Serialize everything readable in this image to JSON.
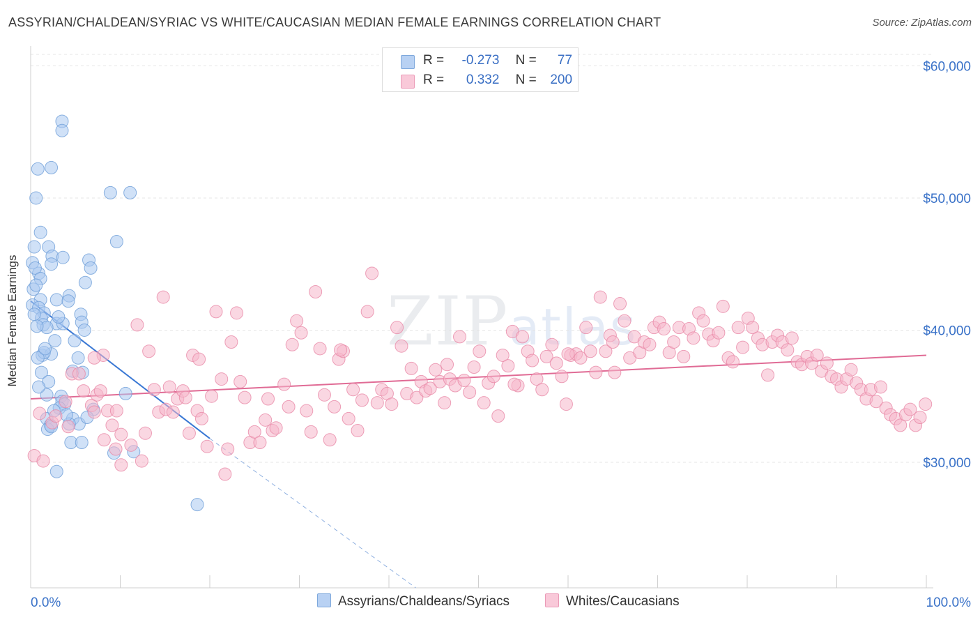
{
  "title": "ASSYRIAN/CHALDEAN/SYRIAC VS WHITE/CAUCASIAN MEDIAN FEMALE EARNINGS CORRELATION CHART",
  "source": "Source: ZipAtlas.com",
  "watermark": {
    "zip": "ZIP",
    "atlas": "atlas"
  },
  "legend": {
    "r_label": "R =",
    "n_label": "N =",
    "rows": [
      {
        "r": "-0.273",
        "n": "77",
        "color": "#a9c8f0"
      },
      {
        "r": "0.332",
        "n": "200",
        "color": "#f6b6cb"
      }
    ]
  },
  "chart_data": {
    "type": "scatter",
    "title": "ASSYRIAN/CHALDEAN/SYRIAC VS WHITE/CAUCASIAN MEDIAN FEMALE EARNINGS CORRELATION CHART",
    "xlabel": "",
    "ylabel": "Median Female Earnings",
    "xlim": [
      0,
      100
    ],
    "ylim": [
      20500,
      61500
    ],
    "x_tick_labels": [
      "0.0%",
      "100.0%"
    ],
    "y_ticks": [
      30000,
      40000,
      50000,
      60000
    ],
    "y_tick_labels": [
      "$30,000",
      "$40,000",
      "$50,000",
      "$60,000"
    ],
    "grid": true,
    "legend_position": "top-center",
    "series": [
      {
        "name": "Assyrians/Chaldeans/Syriacs",
        "color": "#a9c8f0",
        "stroke": "#6f9fd8",
        "trend": {
          "x0": 0,
          "y0": 42200,
          "x1": 20,
          "y1": 31800,
          "dash_to_x": 43,
          "dash_to_y": 20500,
          "color": "#3a78d4"
        },
        "points": [
          [
            3.5,
            55800
          ],
          [
            3.5,
            55100
          ],
          [
            0.8,
            52200
          ],
          [
            2.3,
            52300
          ],
          [
            0.6,
            50000
          ],
          [
            8.9,
            50400
          ],
          [
            11.1,
            50400
          ],
          [
            1.1,
            47400
          ],
          [
            9.6,
            46700
          ],
          [
            0.4,
            46300
          ],
          [
            2.0,
            46300
          ],
          [
            2.4,
            45600
          ],
          [
            3.6,
            45500
          ],
          [
            2.3,
            45000
          ],
          [
            6.5,
            45300
          ],
          [
            0.2,
            45100
          ],
          [
            6.7,
            44700
          ],
          [
            0.9,
            44300
          ],
          [
            0.5,
            44700
          ],
          [
            6.1,
            43600
          ],
          [
            0.3,
            43100
          ],
          [
            1.1,
            42300
          ],
          [
            4.3,
            42600
          ],
          [
            2.9,
            42300
          ],
          [
            4.2,
            42200
          ],
          [
            0.2,
            41900
          ],
          [
            0.9,
            41700
          ],
          [
            1.5,
            41300
          ],
          [
            1.2,
            40900
          ],
          [
            5.6,
            41200
          ],
          [
            5.7,
            40600
          ],
          [
            2.9,
            40500
          ],
          [
            1.4,
            40400
          ],
          [
            1.8,
            40200
          ],
          [
            6.0,
            40000
          ],
          [
            0.7,
            40300
          ],
          [
            3.6,
            40500
          ],
          [
            4.9,
            39200
          ],
          [
            1.3,
            38100
          ],
          [
            2.3,
            38200
          ],
          [
            1.5,
            38300
          ],
          [
            0.8,
            37900
          ],
          [
            5.3,
            37900
          ],
          [
            4.7,
            36900
          ],
          [
            5.8,
            36800
          ],
          [
            1.2,
            36800
          ],
          [
            1.8,
            35100
          ],
          [
            3.4,
            35000
          ],
          [
            3.5,
            34600
          ],
          [
            3.8,
            34400
          ],
          [
            10.6,
            35200
          ],
          [
            7.0,
            34000
          ],
          [
            1.8,
            33300
          ],
          [
            4.7,
            33300
          ],
          [
            5.4,
            32900
          ],
          [
            2.2,
            32800
          ],
          [
            1.9,
            32500
          ],
          [
            4.3,
            32900
          ],
          [
            2.3,
            32700
          ],
          [
            4.5,
            31500
          ],
          [
            5.7,
            31500
          ],
          [
            9.3,
            30700
          ],
          [
            11.5,
            30800
          ],
          [
            2.9,
            29300
          ],
          [
            18.6,
            26800
          ],
          [
            1.1,
            43900
          ],
          [
            0.6,
            43400
          ],
          [
            2.7,
            39200
          ],
          [
            0.4,
            41200
          ],
          [
            3.1,
            41000
          ],
          [
            1.6,
            38600
          ],
          [
            2.0,
            36100
          ],
          [
            0.9,
            35700
          ],
          [
            3.2,
            34100
          ],
          [
            4.0,
            33600
          ],
          [
            2.6,
            33900
          ],
          [
            6.3,
            33400
          ]
        ]
      },
      {
        "name": "Whites/Caucasians",
        "color": "#f6b6cb",
        "stroke": "#e88aa8",
        "trend": {
          "x0": 0,
          "y0": 34800,
          "x1": 100,
          "y1": 38100,
          "color": "#e06b95"
        },
        "points": [
          [
            0.4,
            30500
          ],
          [
            1.4,
            30100
          ],
          [
            1.0,
            33700
          ],
          [
            2.4,
            33000
          ],
          [
            2.8,
            33500
          ],
          [
            4.2,
            32700
          ],
          [
            3.9,
            34600
          ],
          [
            4.6,
            36700
          ],
          [
            5.4,
            36700
          ],
          [
            5.9,
            35400
          ],
          [
            6.8,
            34300
          ],
          [
            7.4,
            35100
          ],
          [
            7.8,
            35400
          ],
          [
            7.1,
            33800
          ],
          [
            8.1,
            38100
          ],
          [
            8.6,
            33900
          ],
          [
            9.1,
            32800
          ],
          [
            9.6,
            33900
          ],
          [
            10.1,
            29800
          ],
          [
            10.1,
            32100
          ],
          [
            11.2,
            31300
          ],
          [
            11.9,
            40400
          ],
          [
            12.4,
            30100
          ],
          [
            12.8,
            32200
          ],
          [
            13.2,
            38400
          ],
          [
            13.8,
            35500
          ],
          [
            14.3,
            33800
          ],
          [
            14.8,
            42500
          ],
          [
            15.1,
            34000
          ],
          [
            15.9,
            33800
          ],
          [
            16.4,
            34800
          ],
          [
            17.0,
            35400
          ],
          [
            17.3,
            34900
          ],
          [
            17.7,
            32200
          ],
          [
            18.1,
            38100
          ],
          [
            18.6,
            33900
          ],
          [
            19.1,
            33300
          ],
          [
            19.7,
            31200
          ],
          [
            20.2,
            35000
          ],
          [
            20.7,
            41400
          ],
          [
            21.3,
            36300
          ],
          [
            21.7,
            29100
          ],
          [
            22.4,
            39100
          ],
          [
            23.0,
            41300
          ],
          [
            23.4,
            36100
          ],
          [
            23.9,
            34900
          ],
          [
            24.5,
            31500
          ],
          [
            25.0,
            32300
          ],
          [
            25.6,
            31500
          ],
          [
            26.2,
            33200
          ],
          [
            27.0,
            32400
          ],
          [
            27.4,
            32600
          ],
          [
            28.3,
            35900
          ],
          [
            28.8,
            34200
          ],
          [
            29.2,
            38900
          ],
          [
            29.7,
            40700
          ],
          [
            30.2,
            39800
          ],
          [
            30.8,
            33900
          ],
          [
            31.3,
            32300
          ],
          [
            31.8,
            42900
          ],
          [
            32.3,
            38600
          ],
          [
            32.8,
            35100
          ],
          [
            33.4,
            31700
          ],
          [
            33.9,
            34200
          ],
          [
            34.4,
            37800
          ],
          [
            34.9,
            38400
          ],
          [
            35.5,
            33300
          ],
          [
            36.0,
            35500
          ],
          [
            36.5,
            32400
          ],
          [
            37.0,
            34700
          ],
          [
            37.6,
            41400
          ],
          [
            38.1,
            44300
          ],
          [
            38.7,
            34500
          ],
          [
            39.2,
            35500
          ],
          [
            39.8,
            35200
          ],
          [
            40.3,
            34400
          ],
          [
            40.9,
            40200
          ],
          [
            41.4,
            38800
          ],
          [
            42.0,
            35200
          ],
          [
            42.5,
            37100
          ],
          [
            43.1,
            34900
          ],
          [
            43.6,
            36100
          ],
          [
            44.1,
            35400
          ],
          [
            44.6,
            35600
          ],
          [
            45.2,
            37000
          ],
          [
            45.7,
            36100
          ],
          [
            46.2,
            34500
          ],
          [
            46.8,
            36300
          ],
          [
            47.4,
            35800
          ],
          [
            47.9,
            39500
          ],
          [
            48.4,
            36200
          ],
          [
            49.0,
            35300
          ],
          [
            49.5,
            37200
          ],
          [
            50.1,
            38400
          ],
          [
            50.6,
            34500
          ],
          [
            51.1,
            36000
          ],
          [
            51.7,
            36500
          ],
          [
            52.2,
            33500
          ],
          [
            52.7,
            38100
          ],
          [
            53.3,
            37300
          ],
          [
            53.8,
            39900
          ],
          [
            54.4,
            35800
          ],
          [
            54.9,
            39500
          ],
          [
            55.5,
            38400
          ],
          [
            56.0,
            37700
          ],
          [
            56.5,
            36300
          ],
          [
            57.1,
            35500
          ],
          [
            57.6,
            38000
          ],
          [
            58.2,
            38900
          ],
          [
            58.7,
            37500
          ],
          [
            59.3,
            36500
          ],
          [
            59.8,
            34400
          ],
          [
            60.3,
            38100
          ],
          [
            60.9,
            38200
          ],
          [
            61.4,
            37900
          ],
          [
            62.0,
            40200
          ],
          [
            62.5,
            38400
          ],
          [
            63.1,
            36800
          ],
          [
            63.6,
            42500
          ],
          [
            64.2,
            38400
          ],
          [
            64.7,
            39600
          ],
          [
            65.2,
            36800
          ],
          [
            65.8,
            42000
          ],
          [
            66.3,
            40700
          ],
          [
            66.9,
            37900
          ],
          [
            67.4,
            39500
          ],
          [
            68.0,
            38300
          ],
          [
            68.5,
            39100
          ],
          [
            69.1,
            38900
          ],
          [
            69.6,
            40200
          ],
          [
            70.2,
            40600
          ],
          [
            70.7,
            40100
          ],
          [
            71.3,
            38300
          ],
          [
            71.8,
            39100
          ],
          [
            72.4,
            40200
          ],
          [
            72.9,
            38000
          ],
          [
            73.5,
            40100
          ],
          [
            74.0,
            39400
          ],
          [
            74.6,
            41300
          ],
          [
            75.1,
            40700
          ],
          [
            75.7,
            39700
          ],
          [
            76.2,
            39200
          ],
          [
            76.8,
            39800
          ],
          [
            77.3,
            41800
          ],
          [
            77.9,
            37900
          ],
          [
            78.4,
            37600
          ],
          [
            79.0,
            40200
          ],
          [
            79.5,
            38700
          ],
          [
            80.1,
            40900
          ],
          [
            80.6,
            40200
          ],
          [
            81.2,
            39400
          ],
          [
            81.7,
            38900
          ],
          [
            82.3,
            36600
          ],
          [
            82.8,
            39100
          ],
          [
            83.4,
            39600
          ],
          [
            83.9,
            39100
          ],
          [
            84.5,
            38500
          ],
          [
            85.0,
            39400
          ],
          [
            85.6,
            37600
          ],
          [
            86.1,
            37400
          ],
          [
            86.7,
            38000
          ],
          [
            87.2,
            37500
          ],
          [
            87.8,
            38100
          ],
          [
            88.3,
            36900
          ],
          [
            88.9,
            37500
          ],
          [
            89.4,
            36500
          ],
          [
            90.0,
            36300
          ],
          [
            90.5,
            35700
          ],
          [
            91.1,
            36300
          ],
          [
            91.6,
            37000
          ],
          [
            92.2,
            36000
          ],
          [
            92.7,
            35500
          ],
          [
            93.3,
            34800
          ],
          [
            93.8,
            35500
          ],
          [
            94.4,
            34600
          ],
          [
            94.9,
            35700
          ],
          [
            95.5,
            34100
          ],
          [
            96.0,
            33600
          ],
          [
            96.6,
            33300
          ],
          [
            97.1,
            32800
          ],
          [
            97.7,
            33600
          ],
          [
            98.2,
            34000
          ],
          [
            98.8,
            32800
          ],
          [
            99.3,
            33400
          ],
          [
            99.9,
            34400
          ],
          [
            7.1,
            37900
          ],
          [
            18.8,
            37800
          ],
          [
            46.5,
            37400
          ],
          [
            34.6,
            38500
          ],
          [
            54.0,
            35900
          ],
          [
            65.0,
            39100
          ],
          [
            22.0,
            31000
          ],
          [
            60.0,
            38200
          ],
          [
            8.2,
            31700
          ],
          [
            9.5,
            31000
          ],
          [
            15.5,
            35700
          ],
          [
            26.5,
            34800
          ]
        ]
      }
    ]
  }
}
